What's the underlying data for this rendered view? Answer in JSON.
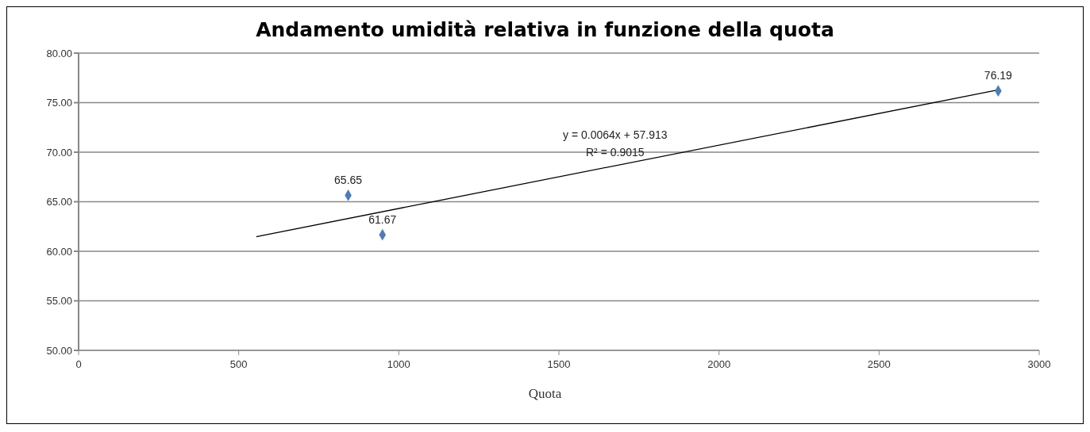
{
  "chart_data": {
    "type": "scatter",
    "title": "Andamento umidità relativa in funzione della quota",
    "xlabel": "Quota",
    "annotations": [
      "y = 0.0064x + 57.913",
      "R² = 0.9015"
    ],
    "xlim": [
      0,
      3000
    ],
    "xticks": [
      0,
      500,
      1000,
      1500,
      2000,
      2500,
      3000
    ],
    "ylim": [
      50,
      80
    ],
    "yticks": [
      {
        "value": 50,
        "label": "50.00"
      },
      {
        "value": 55,
        "label": "55.00"
      },
      {
        "value": 60,
        "label": "60.00"
      },
      {
        "value": 65,
        "label": "65.00"
      },
      {
        "value": 70,
        "label": "70.00"
      },
      {
        "value": 75,
        "label": "75.00"
      },
      {
        "value": 80,
        "label": "80.00"
      }
    ],
    "grid": "y",
    "marker": "diamond",
    "series": [
      {
        "color": "#4a7ebb",
        "x": [
          842,
          949,
          2872
        ],
        "values": [
          65.65,
          61.67,
          76.19
        ],
        "value_labels": [
          "65.65",
          "61.67",
          "76.19"
        ]
      },
      {
        "type": "line",
        "color": "#000000",
        "x": [
          555,
          2872
        ],
        "values": [
          61.47,
          76.29
        ],
        "marker": "none",
        "line_style": "solid"
      }
    ]
  }
}
